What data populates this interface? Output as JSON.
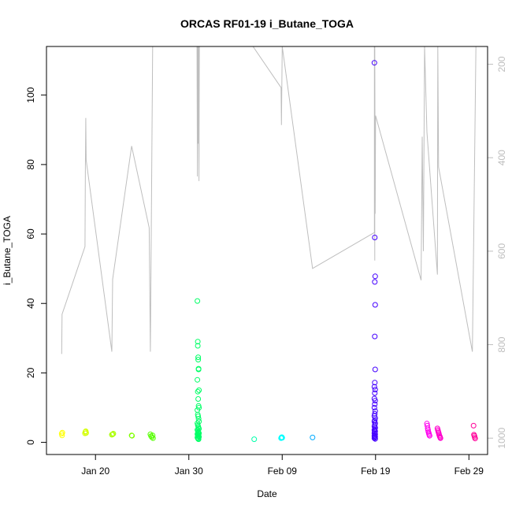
{
  "chart_data": {
    "type": "scatter",
    "title": "ORCAS RF01-19 i_Butane_TOGA",
    "xlabel": "Date",
    "ylabel": "i_Butane_TOGA",
    "xlim": [
      "2016-01-14T18:00",
      "2016-03-02T00:00"
    ],
    "ylim": [
      -3.5,
      114
    ],
    "x_ticks": [
      {
        "date": "2016-01-20",
        "label": "Jan 20"
      },
      {
        "date": "2016-01-30",
        "label": "Jan 30"
      },
      {
        "date": "2016-02-09",
        "label": "Feb 09"
      },
      {
        "date": "2016-02-19",
        "label": "Feb 19"
      },
      {
        "date": "2016-02-29",
        "label": "Feb 29"
      }
    ],
    "y_ticks": [
      0,
      20,
      40,
      60,
      80,
      100
    ],
    "y2_axis": {
      "reversed": true,
      "ylim": [
        1035,
        162
      ],
      "ticks": [
        200,
        400,
        600,
        800,
        1000
      ],
      "color": "#bebebe"
    },
    "grid": false,
    "legend": "none",
    "series": [
      {
        "color": "#ffff00",
        "points": [
          [
            "2016-01-16T09:00",
            2.5
          ],
          [
            "2016-01-16T10:00",
            2.0
          ],
          [
            "2016-01-16T11:00",
            2.8
          ]
        ]
      },
      {
        "color": "#d4ff00",
        "points": [
          [
            "2016-01-18T21:00",
            2.6
          ],
          [
            "2016-01-18T22:00",
            3.0
          ],
          [
            "2016-01-18T23:00",
            3.2
          ],
          [
            "2016-01-19T00:00",
            2.7
          ]
        ]
      },
      {
        "color": "#aaff00",
        "points": [
          [
            "2016-01-21T18:00",
            2.2
          ],
          [
            "2016-01-21T20:00",
            2.3
          ],
          [
            "2016-01-21T22:00",
            2.5
          ]
        ]
      },
      {
        "color": "#80ff00",
        "points": [
          [
            "2016-01-23T21:00",
            2.0
          ],
          [
            "2016-01-23T22:00",
            1.9
          ]
        ]
      },
      {
        "color": "#55ff00",
        "points": [
          [
            "2016-01-25T21:00",
            2.3
          ],
          [
            "2016-01-25T23:00",
            1.8
          ],
          [
            "2016-01-26T01:00",
            1.5
          ],
          [
            "2016-01-26T03:00",
            2.0
          ],
          [
            "2016-01-26T04:00",
            1.2
          ]
        ]
      },
      {
        "color": "#00ff66",
        "points": [
          [
            "2016-01-30T22:00",
            40.7
          ],
          [
            "2016-01-30T23:00",
            29.0
          ],
          [
            "2016-01-30T23:00",
            27.8
          ],
          [
            "2016-01-31T00:00",
            24.5
          ],
          [
            "2016-01-31T00:00",
            23.8
          ],
          [
            "2016-01-31T01:00",
            21.2
          ],
          [
            "2016-01-31T01:00",
            21.0
          ],
          [
            "2016-01-30T22:00",
            18.0
          ],
          [
            "2016-01-31T02:00",
            15.0
          ],
          [
            "2016-01-30T23:00",
            14.6
          ],
          [
            "2016-01-31T00:00",
            12.5
          ],
          [
            "2016-01-31T01:00",
            10.5
          ],
          [
            "2016-01-31T02:00",
            10.0
          ],
          [
            "2016-01-30T22:00",
            9.3
          ],
          [
            "2016-01-30T23:00",
            8.0
          ],
          [
            "2016-01-31T00:00",
            7.5
          ],
          [
            "2016-01-31T01:00",
            6.8
          ],
          [
            "2016-01-31T02:00",
            6.0
          ],
          [
            "2016-01-30T22:00",
            5.5
          ],
          [
            "2016-01-30T23:00",
            5.0
          ],
          [
            "2016-01-31T00:00",
            4.6
          ],
          [
            "2016-01-31T01:00",
            4.2
          ],
          [
            "2016-01-31T02:00",
            3.9
          ],
          [
            "2016-01-30T22:00",
            3.6
          ],
          [
            "2016-01-30T23:00",
            3.3
          ],
          [
            "2016-01-31T00:00",
            3.0
          ],
          [
            "2016-01-31T01:00",
            2.8
          ],
          [
            "2016-01-31T02:00",
            2.6
          ],
          [
            "2016-01-30T22:00",
            2.4
          ],
          [
            "2016-01-30T23:00",
            2.2
          ],
          [
            "2016-01-31T00:00",
            2.0
          ],
          [
            "2016-01-31T01:00",
            1.8
          ],
          [
            "2016-01-31T02:00",
            1.6
          ],
          [
            "2016-01-30T22:00",
            1.4
          ],
          [
            "2016-01-30T23:00",
            1.2
          ],
          [
            "2016-01-31T00:00",
            1.0
          ],
          [
            "2016-01-31T01:00",
            0.9
          ]
        ]
      },
      {
        "color": "#00ffaa",
        "points": [
          [
            "2016-02-06T00:00",
            0.9
          ]
        ]
      },
      {
        "color": "#00ffff",
        "points": [
          [
            "2016-02-08T21:00",
            1.2
          ],
          [
            "2016-02-08T22:00",
            1.4
          ],
          [
            "2016-02-08T23:00",
            1.5
          ],
          [
            "2016-02-09T00:00",
            1.3
          ]
        ]
      },
      {
        "color": "#00aaff",
        "points": [
          [
            "2016-02-12T06:00",
            1.4
          ]
        ]
      },
      {
        "color": "#4400ff",
        "points": [
          [
            "2016-02-18T21:00",
            109.3
          ],
          [
            "2016-02-18T22:00",
            59.0
          ],
          [
            "2016-02-18T23:00",
            47.8
          ],
          [
            "2016-02-18T22:00",
            46.2
          ],
          [
            "2016-02-18T23:00",
            39.6
          ],
          [
            "2016-02-18T22:00",
            30.5
          ],
          [
            "2016-02-18T23:00",
            21.0
          ],
          [
            "2016-02-18T22:00",
            17.2
          ],
          [
            "2016-02-18T21:00",
            16.0
          ],
          [
            "2016-02-18T23:00",
            15.2
          ],
          [
            "2016-02-18T22:00",
            14.2
          ],
          [
            "2016-02-18T21:00",
            12.6
          ],
          [
            "2016-02-18T23:00",
            12.0
          ],
          [
            "2016-02-18T22:00",
            11.0
          ],
          [
            "2016-02-18T21:00",
            10.0
          ],
          [
            "2016-02-18T23:00",
            9.0
          ],
          [
            "2016-02-18T22:00",
            8.2
          ],
          [
            "2016-02-18T21:00",
            7.6
          ],
          [
            "2016-02-18T23:00",
            7.0
          ],
          [
            "2016-02-18T22:00",
            6.4
          ],
          [
            "2016-02-18T21:00",
            6.0
          ],
          [
            "2016-02-18T23:00",
            5.5
          ],
          [
            "2016-02-18T22:00",
            5.0
          ],
          [
            "2016-02-18T21:00",
            4.6
          ],
          [
            "2016-02-18T23:00",
            4.2
          ],
          [
            "2016-02-18T22:00",
            3.8
          ],
          [
            "2016-02-18T21:00",
            3.5
          ],
          [
            "2016-02-18T23:00",
            3.2
          ],
          [
            "2016-02-18T22:00",
            2.9
          ],
          [
            "2016-02-18T21:00",
            2.6
          ],
          [
            "2016-02-18T23:00",
            2.3
          ],
          [
            "2016-02-18T22:00",
            2.0
          ],
          [
            "2016-02-18T21:00",
            1.8
          ],
          [
            "2016-02-18T23:00",
            1.6
          ],
          [
            "2016-02-18T22:00",
            1.4
          ],
          [
            "2016-02-18T21:00",
            1.2
          ],
          [
            "2016-02-18T23:00",
            1.0
          ]
        ]
      },
      {
        "color": "#ff00ee",
        "points": [
          [
            "2016-02-24T12:00",
            5.4
          ],
          [
            "2016-02-24T13:00",
            4.8
          ],
          [
            "2016-02-24T14:00",
            4.0
          ],
          [
            "2016-02-24T15:00",
            3.5
          ],
          [
            "2016-02-24T16:00",
            3.0
          ],
          [
            "2016-02-24T17:00",
            2.6
          ],
          [
            "2016-02-24T18:00",
            2.2
          ],
          [
            "2016-02-24T19:00",
            1.9
          ]
        ]
      },
      {
        "color": "#ff00cc",
        "points": [
          [
            "2016-02-25T15:00",
            4.0
          ],
          [
            "2016-02-25T16:00",
            3.6
          ],
          [
            "2016-02-25T17:00",
            3.2
          ],
          [
            "2016-02-25T18:00",
            2.8
          ],
          [
            "2016-02-25T19:00",
            2.4
          ],
          [
            "2016-02-25T20:00",
            2.0
          ],
          [
            "2016-02-25T21:00",
            1.7
          ],
          [
            "2016-02-25T22:00",
            1.4
          ],
          [
            "2016-02-25T23:00",
            1.2
          ]
        ]
      },
      {
        "color": "#ff0099",
        "points": [
          [
            "2016-02-29T12:00",
            4.8
          ],
          [
            "2016-02-29T13:00",
            2.2
          ],
          [
            "2016-02-29T14:00",
            1.9
          ],
          [
            "2016-02-29T15:00",
            1.5
          ],
          [
            "2016-02-29T16:00",
            1.1
          ]
        ]
      }
    ],
    "altitude_line": {
      "color": "#bebebe",
      "axis": "y2",
      "points": [
        [
          "2016-01-16T09:00",
          820
        ],
        [
          "2016-01-16T10:00",
          735
        ],
        [
          "2016-01-18T21:00",
          590
        ],
        [
          "2016-01-18T22:00",
          420
        ],
        [
          "2016-01-18T23:00",
          315
        ],
        [
          "2016-01-19T00:00",
          405
        ],
        [
          "2016-01-21T18:00",
          815
        ],
        [
          "2016-01-21T20:00",
          660
        ],
        [
          "2016-01-23T21:00",
          375
        ],
        [
          "2016-01-25T18:00",
          550
        ],
        [
          "2016-01-25T21:00",
          815
        ],
        [
          "2016-01-26T03:00",
          150
        ],
        [
          "2016-01-30T21:00",
          150
        ],
        [
          "2016-01-30T22:00",
          440
        ],
        [
          "2016-01-30T23:00",
          150
        ],
        [
          "2016-01-31T00:00",
          370
        ],
        [
          "2016-01-31T01:00",
          150
        ],
        [
          "2016-01-31T02:00",
          450
        ],
        [
          "2016-01-31T03:00",
          150
        ],
        [
          "2016-02-05T21:00",
          150
        ],
        [
          "2016-02-08T21:00",
          250
        ],
        [
          "2016-02-08T22:00",
          330
        ],
        [
          "2016-02-09T00:00",
          150
        ],
        [
          "2016-02-12T06:00",
          637
        ],
        [
          "2016-02-18T21:00",
          560
        ],
        [
          "2016-02-18T21:00",
          150
        ],
        [
          "2016-02-18T22:00",
          620
        ],
        [
          "2016-02-18T22:00",
          150
        ],
        [
          "2016-02-18T23:00",
          520
        ],
        [
          "2016-02-19T00:00",
          310
        ],
        [
          "2016-02-23T21:00",
          662
        ],
        [
          "2016-02-24T00:00",
          355
        ],
        [
          "2016-02-24T03:00",
          600
        ],
        [
          "2016-02-24T06:00",
          150
        ],
        [
          "2016-02-24T12:00",
          345
        ],
        [
          "2016-02-25T15:00",
          650
        ],
        [
          "2016-02-25T16:00",
          150
        ],
        [
          "2016-02-25T18:00",
          420
        ],
        [
          "2016-02-29T09:00",
          815
        ],
        [
          "2016-02-29T18:00",
          150
        ]
      ]
    }
  }
}
